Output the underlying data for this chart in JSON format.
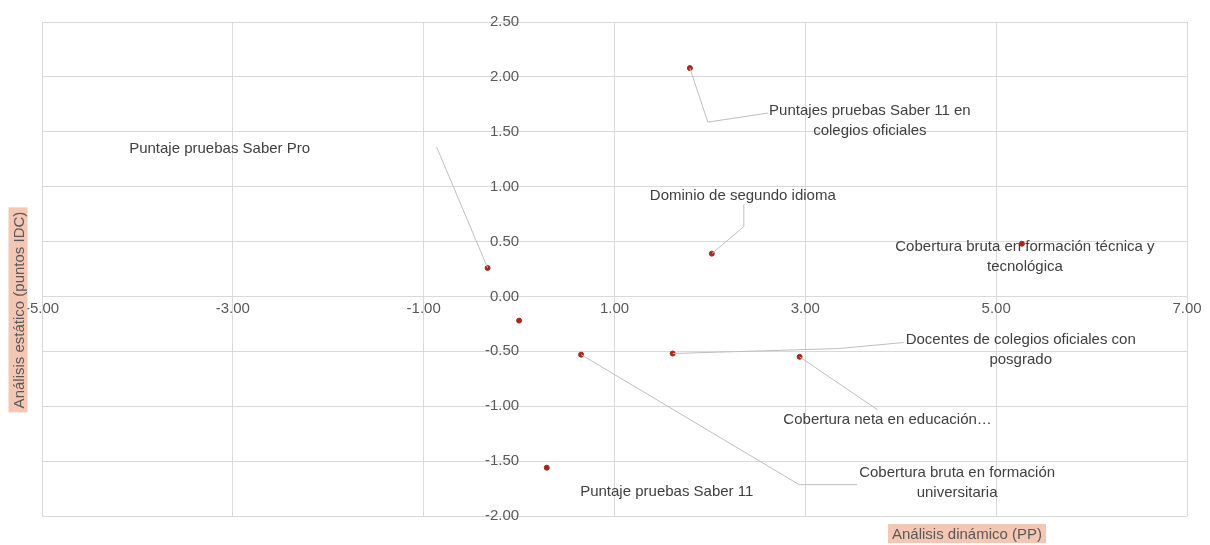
{
  "chart_data": {
    "type": "scatter",
    "xlabel": "Análisis dinámico (PP)",
    "ylabel": "Análisis estático (puntos IDC)",
    "x": [
      1.79,
      -0.33,
      2.02,
      5.27,
      0,
      0.65,
      1.61,
      2.94,
      0.29
    ],
    "values": [
      2.08,
      0.26,
      0.39,
      0.48,
      -0.22,
      -0.53,
      -0.52,
      -0.55,
      -1.56
    ],
    "color": "#a5281b",
    "marker": "circle",
    "grid": true,
    "legend": false,
    "xlim": [
      -5,
      7
    ],
    "xticks": [
      {
        "value": -5,
        "label": "-5.00"
      },
      {
        "value": -3,
        "label": "-3.00"
      },
      {
        "value": -1,
        "label": "-1.00"
      },
      {
        "value": 1,
        "label": "1.00"
      },
      {
        "value": 3,
        "label": "3.00"
      },
      {
        "value": 5,
        "label": "5.00"
      },
      {
        "value": 7,
        "label": "7.00"
      }
    ],
    "ylim": [
      -2,
      2.5
    ],
    "yticks": [
      {
        "value": -2,
        "label": "-2.00"
      },
      {
        "value": -1.5,
        "label": "-1.50"
      },
      {
        "value": -1,
        "label": "-1.00"
      },
      {
        "value": -0.5,
        "label": "-0.50"
      },
      {
        "value": 0,
        "label": "0.00"
      },
      {
        "value": 0.5,
        "label": "0.50"
      },
      {
        "value": 1,
        "label": "1.00"
      },
      {
        "value": 1.5,
        "label": "1.50"
      },
      {
        "value": 2,
        "label": "2.00"
      },
      {
        "value": 2.5,
        "label": "2.50"
      }
    ],
    "annotations": [
      {
        "text": "Puntajes pruebas Saber 11 en colegios oficiales",
        "x": 1.79,
        "y": 2.08
      },
      "Puntaje pruebas Saber Pro",
      {
        "text": "Dominio de segundo idioma",
        "x": 2.02,
        "y": 0.39
      },
      {
        "text": "Cobertura bruta en formación técnica y tecnológica",
        "x": 5.27,
        "y": 0.48
      },
      {
        "text": "Cobertura bruta en formación universitaria",
        "x": 0.65,
        "y": -0.53
      },
      {
        "text": "Docentes de colegios oficiales con posgrado",
        "x": 1.61,
        "y": -0.52
      },
      {
        "text": "Cobertura neta en educación…",
        "x": 2.94,
        "y": -0.55
      },
      {
        "text": "Puntaje pruebas Saber 11",
        "x": 0.29,
        "y": -1.56
      }
    ]
  }
}
